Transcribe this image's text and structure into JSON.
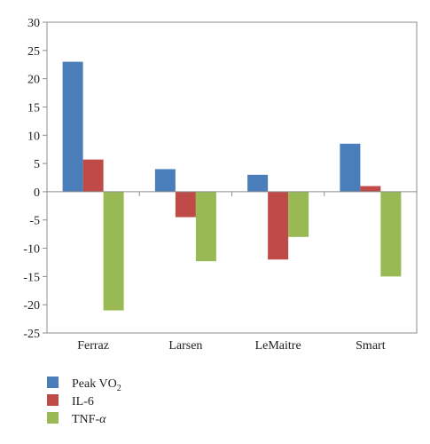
{
  "chart_data": {
    "type": "bar",
    "categories": [
      "Ferraz",
      "Larsen",
      "LeMaitre",
      "Smart"
    ],
    "series": [
      {
        "name": "Peak VO",
        "name_sub": "2",
        "color": "#4a7ebb",
        "values": [
          23,
          4,
          3,
          8.5
        ]
      },
      {
        "name": "IL-6",
        "color": "#be4b48",
        "values": [
          5.7,
          -4.5,
          -12,
          1
        ]
      },
      {
        "name": "TNF-",
        "name_suffix": "α",
        "color": "#98b954",
        "values": [
          -21,
          -12.3,
          -8,
          -15
        ]
      }
    ],
    "yticks": [
      30,
      25,
      20,
      15,
      10,
      5,
      0,
      -5,
      -10,
      -15,
      -20,
      -25
    ],
    "ylim": [
      -25,
      30
    ],
    "grid": false,
    "legend_position": "bottom-left",
    "title": "",
    "xlabel": "",
    "ylabel": ""
  }
}
